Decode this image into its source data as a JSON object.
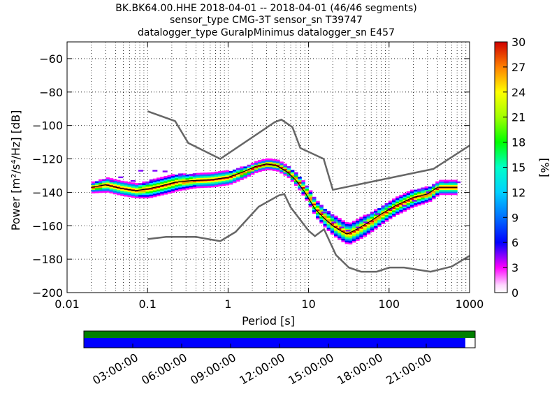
{
  "title_lines": [
    "BK.BK64.00.HHE   2018-04-01 -- 2018-04-01  (46/46 segments)",
    "sensor_type CMG-3T sensor_sn T39747",
    "datalogger_type GuralpMinimus datalogger_sn E457"
  ],
  "chart_data": [
    {
      "type": "heatmap",
      "xlabel": "Period [s]",
      "ylabel": "Power [m²/s⁴/Hz] [dB]",
      "x_scale": "log",
      "xlim": [
        0.01,
        1000
      ],
      "ylim": [
        -200,
        -50
      ],
      "grid": true,
      "x_ticks": [
        {
          "value": 0.01,
          "label": "0.01"
        },
        {
          "value": 0.1,
          "label": "0.1"
        },
        {
          "value": 1,
          "label": "1"
        },
        {
          "value": 10,
          "label": "10"
        },
        {
          "value": 100,
          "label": "100"
        },
        {
          "value": 1000,
          "label": "1000"
        }
      ],
      "y_ticks": [
        {
          "value": -60,
          "label": "−60"
        },
        {
          "value": -80,
          "label": "−80"
        },
        {
          "value": -100,
          "label": "−100"
        },
        {
          "value": -120,
          "label": "−120"
        },
        {
          "value": -140,
          "label": "−140"
        },
        {
          "value": -160,
          "label": "−160"
        },
        {
          "value": -180,
          "label": "−180"
        },
        {
          "value": -200,
          "label": "−200"
        }
      ],
      "colorbar": {
        "label": "[%]",
        "range": [
          0,
          30
        ],
        "ticks": [
          "0",
          "3",
          "6",
          "9",
          "12",
          "15",
          "18",
          "21",
          "24",
          "27",
          "30"
        ]
      },
      "noise_model_high": [
        [
          0.1,
          -91.5
        ],
        [
          0.22,
          -97.4
        ],
        [
          0.32,
          -110.5
        ],
        [
          0.8,
          -120
        ],
        [
          3.8,
          -98
        ],
        [
          4.6,
          -96.5
        ],
        [
          6.3,
          -101
        ],
        [
          7.9,
          -113.5
        ],
        [
          15.4,
          -120
        ],
        [
          20,
          -138.5
        ],
        [
          354.8,
          -126
        ],
        [
          1000,
          -112
        ]
      ],
      "noise_model_low": [
        [
          0.1,
          -168
        ],
        [
          0.17,
          -166.7
        ],
        [
          0.4,
          -166.7
        ],
        [
          0.8,
          -169.2
        ],
        [
          1.24,
          -163.7
        ],
        [
          2.4,
          -148.6
        ],
        [
          4.3,
          -141.8
        ],
        [
          5.0,
          -141.1
        ],
        [
          6.0,
          -149
        ],
        [
          10,
          -163
        ],
        [
          12,
          -166.2
        ],
        [
          15.6,
          -162.1
        ],
        [
          21.9,
          -177.5
        ],
        [
          31.6,
          -185
        ],
        [
          45,
          -187.5
        ],
        [
          70,
          -187.5
        ],
        [
          101,
          -185
        ],
        [
          154,
          -185
        ],
        [
          328,
          -187.5
        ],
        [
          600,
          -184.4
        ],
        [
          1000,
          -178
        ]
      ],
      "median": [
        [
          0.02,
          -137
        ],
        [
          0.03,
          -135.5
        ],
        [
          0.045,
          -137.5
        ],
        [
          0.07,
          -139
        ],
        [
          0.1,
          -138
        ],
        [
          0.15,
          -136
        ],
        [
          0.22,
          -134
        ],
        [
          0.35,
          -133
        ],
        [
          0.6,
          -132.5
        ],
        [
          1.0,
          -131
        ],
        [
          1.5,
          -128
        ],
        [
          2.2,
          -124.5
        ],
        [
          3.0,
          -123
        ],
        [
          4.0,
          -124
        ],
        [
          5.5,
          -128
        ],
        [
          7.0,
          -133
        ],
        [
          9.0,
          -140
        ],
        [
          12,
          -150
        ],
        [
          16,
          -156
        ],
        [
          20,
          -160
        ],
        [
          25,
          -163
        ],
        [
          30,
          -165
        ],
        [
          40,
          -162
        ],
        [
          60,
          -157
        ],
        [
          80,
          -153
        ],
        [
          120,
          -148
        ],
        [
          200,
          -143
        ],
        [
          300,
          -141
        ],
        [
          400,
          -137
        ],
        [
          700,
          -137
        ]
      ],
      "spread": [
        [
          0.02,
          2
        ],
        [
          0.03,
          3
        ],
        [
          0.05,
          3
        ],
        [
          0.07,
          3
        ],
        [
          0.1,
          4
        ],
        [
          0.2,
          4
        ],
        [
          0.4,
          3
        ],
        [
          0.7,
          3
        ],
        [
          1.0,
          3
        ],
        [
          2.0,
          2
        ],
        [
          3.0,
          2
        ],
        [
          5.0,
          2
        ],
        [
          8.0,
          3
        ],
        [
          12,
          4
        ],
        [
          20,
          5
        ],
        [
          30,
          5
        ],
        [
          50,
          5
        ],
        [
          100,
          4
        ],
        [
          200,
          4
        ],
        [
          400,
          3
        ],
        [
          700,
          3
        ]
      ],
      "outlier_trace": [
        [
          0.11,
          -132.8
        ],
        [
          0.064,
          -133.2
        ],
        [
          0.045,
          -131
        ],
        [
          0.035,
          -133.4
        ],
        [
          0.08,
          -127.1
        ],
        [
          0.12,
          -127.1
        ],
        [
          0.16,
          -127.5
        ],
        [
          0.25,
          -129.2
        ],
        [
          0.35,
          -129.8
        ]
      ],
      "outlier_tail": [
        [
          15,
          -152
        ],
        [
          20,
          -158
        ],
        [
          25,
          -161
        ],
        [
          30,
          -163
        ],
        [
          40,
          -161
        ],
        [
          50,
          -158
        ],
        [
          70,
          -153
        ],
        [
          100,
          -150
        ],
        [
          150,
          -148
        ],
        [
          200,
          -145
        ],
        [
          300,
          -140
        ],
        [
          500,
          -134
        ],
        [
          700,
          -134
        ]
      ]
    },
    {
      "type": "timeline",
      "ticks": [
        "03:00:00",
        "06:00:00",
        "09:00:00",
        "12:00:00",
        "15:00:00",
        "18:00:00",
        "21:00:00"
      ],
      "bars": [
        {
          "color": "#008000",
          "coverage": 1.0
        },
        {
          "color": "#0000ff",
          "coverage": 0.975
        }
      ]
    }
  ]
}
